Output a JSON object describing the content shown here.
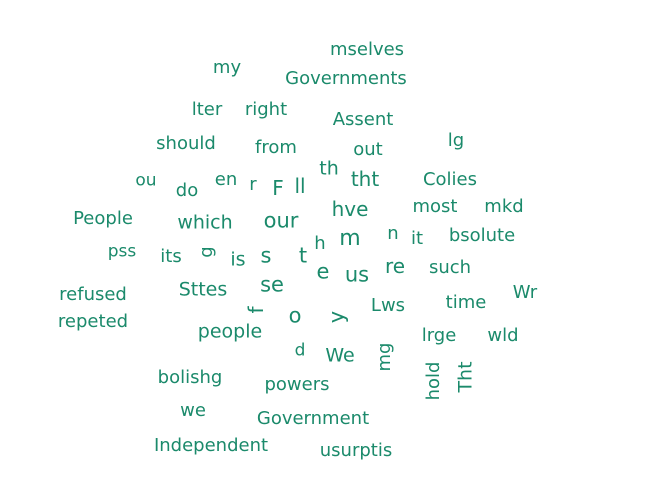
{
  "cloud": {
    "color": "#1b8a6b",
    "words": [
      "mselves",
      "my",
      "Governments",
      "lter",
      "right",
      "Assent",
      "should",
      "from",
      "out",
      "lg",
      "ou",
      "do",
      "en",
      "r",
      "F",
      "ll",
      "th",
      "tht",
      "Colies",
      "People",
      "which",
      "our",
      "hve",
      "most",
      "mkd",
      "pss",
      "its",
      "g",
      "is",
      "s",
      "t",
      "h",
      "m",
      "n",
      "it",
      "bsolute",
      "e",
      "us",
      "re",
      "such",
      "refused",
      "Sttes",
      "se",
      "f",
      "Lws",
      "time",
      "Wr",
      "repeted",
      "o",
      "y",
      "people",
      "lrge",
      "wld",
      "d",
      "We",
      "mg",
      "bolishg",
      "powers",
      "hold",
      "Tht",
      "we",
      "Government",
      "Independent",
      "usurptis"
    ]
  }
}
